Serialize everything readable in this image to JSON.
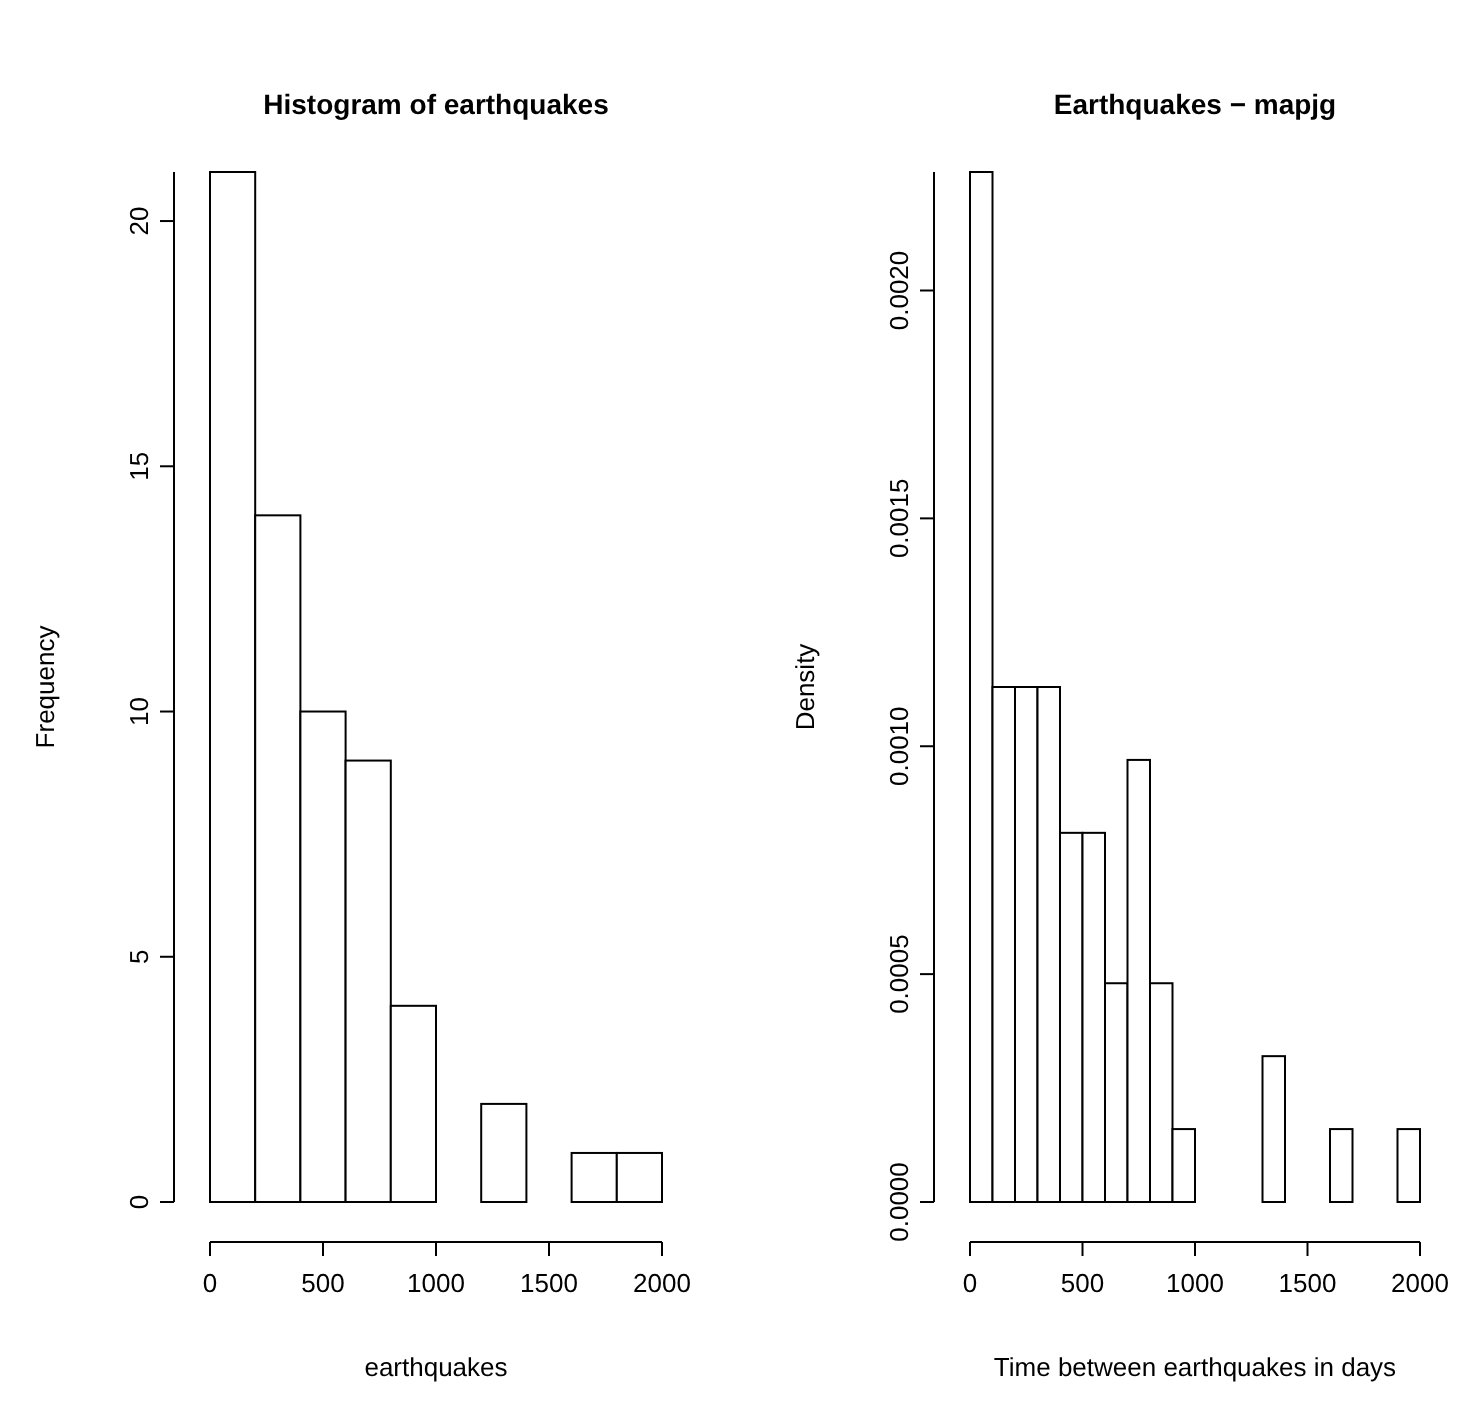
{
  "chart_data": [
    {
      "type": "histogram",
      "title": "Histogram of earthquakes",
      "xlabel": "earthquakes",
      "ylabel": "Frequency",
      "bins": [
        0,
        200,
        400,
        600,
        800,
        1000,
        1200,
        1400,
        1600,
        1800,
        2000
      ],
      "values": [
        21,
        14,
        10,
        9,
        4,
        0,
        2,
        0,
        1,
        1
      ],
      "color": "#ffffff",
      "xlim": [
        0,
        2000
      ],
      "ylim": [
        0,
        21
      ],
      "xticks": [
        0,
        500,
        1000,
        1500,
        2000
      ],
      "yticks": [
        0,
        5,
        10,
        15,
        20
      ]
    },
    {
      "type": "histogram",
      "title": "Earthquakes − mapjg",
      "xlabel": "Time between earthquakes in days",
      "ylabel": "Density",
      "bins": [
        0,
        100,
        200,
        300,
        400,
        500,
        600,
        700,
        800,
        900,
        1000,
        1100,
        1200,
        1300,
        1400,
        1500,
        1600,
        1700,
        1800,
        1900,
        2000
      ],
      "values": [
        0.00226,
        0.00113,
        0.00113,
        0.00113,
        0.00081,
        0.00081,
        0.00048,
        0.00097,
        0.00048,
        0.00016,
        0,
        0,
        0,
        0.00032,
        0,
        0,
        0.00016,
        0,
        0,
        0.00016
      ],
      "color": "#ffffff",
      "xlim": [
        0,
        2000
      ],
      "ylim": [
        0,
        0.00226
      ],
      "xticks": [
        0,
        500,
        1000,
        1500,
        2000
      ],
      "yticks": [
        {
          "value": 0,
          "label": "0.0000"
        },
        {
          "value": 0.0005,
          "label": "0.0005"
        },
        {
          "value": 0.001,
          "label": "0.0010"
        },
        {
          "value": 0.0015,
          "label": "0.0015"
        },
        {
          "value": 0.002,
          "label": "0.0020"
        }
      ]
    }
  ]
}
